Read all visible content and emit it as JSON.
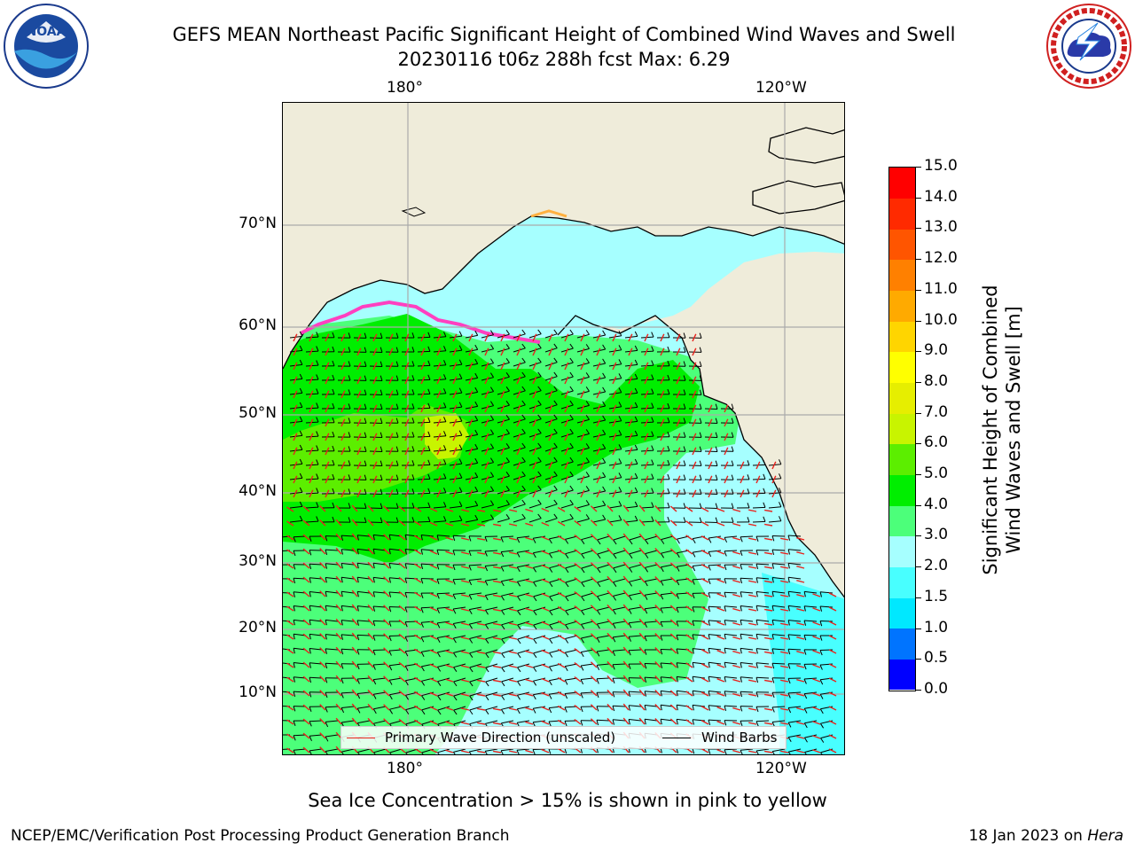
{
  "header": {
    "title_line1": "GEFS MEAN Northeast Pacific Significant Height of Combined Wind Waves and Swell",
    "title_line2": "20230116 t06z 288h fcst   Max: 6.29"
  },
  "logos": {
    "noaa": {
      "text": "NOAA",
      "icon": "noaa-logo-icon"
    },
    "nws": {
      "text": "NATIONAL WEATHER SERVICE",
      "icon": "nws-logo-icon"
    }
  },
  "map": {
    "lon_labels_top": [
      "180°",
      "120°W"
    ],
    "lon_labels_bottom": [
      "180°",
      "120°W"
    ],
    "lat_labels": [
      "70°N",
      "60°N",
      "50°N",
      "40°N",
      "30°N",
      "20°N",
      "10°N"
    ],
    "legend": {
      "wave_direction": "Primary Wave Direction (unscaled)",
      "wind_barbs": "Wind Barbs",
      "wave_color": "#e8221c",
      "barb_color": "#000000"
    },
    "colors": {
      "land": "#efecda",
      "ocean_low": "#a6ffff"
    }
  },
  "colorbar": {
    "title_line1": "Significant Height of Combined",
    "title_line2": "Wind Waves and Swell [m]",
    "ticks": [
      "0.0",
      "0.5",
      "1.0",
      "1.5",
      "2.0",
      "3.0",
      "4.0",
      "5.0",
      "6.0",
      "7.0",
      "8.0",
      "9.0",
      "10.0",
      "11.0",
      "12.0",
      "13.0",
      "14.0",
      "15.0"
    ],
    "colors": [
      "#0000ff",
      "#0074ff",
      "#00e8ff",
      "#48ffff",
      "#a6ffff",
      "#4cff7a",
      "#00ee00",
      "#5cee00",
      "#c8f400",
      "#e6ee00",
      "#ffff00",
      "#ffd500",
      "#ffaa00",
      "#ff8000",
      "#ff5500",
      "#ff2a00",
      "#ff0000"
    ]
  },
  "footer": {
    "ice_note": "Sea Ice Concentration > 15% is shown in pink to yellow",
    "left": "NCEP/EMC/Verification Post Processing Product Generation Branch",
    "date": "18 Jan 2023 on",
    "machine": "Hera"
  }
}
